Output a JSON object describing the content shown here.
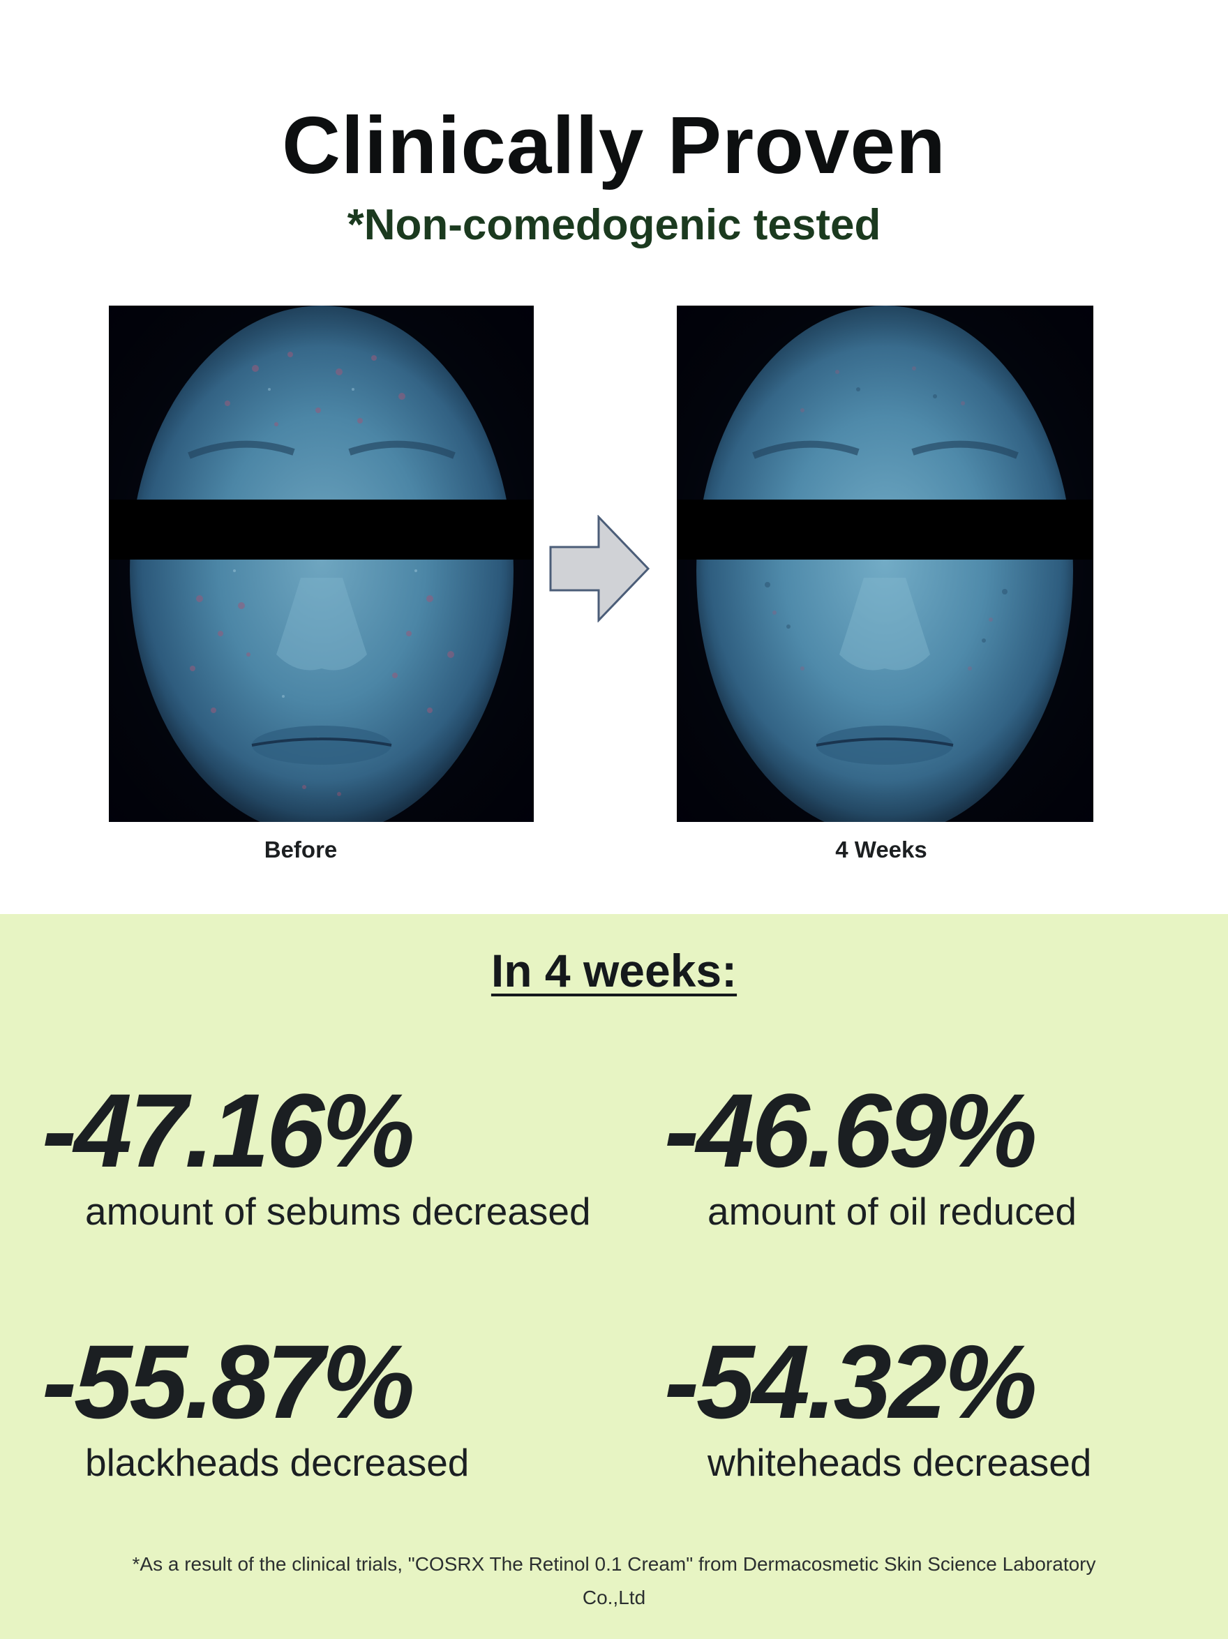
{
  "header": {
    "title": "Clinically Proven",
    "subtitle": "*Non-comedogenic tested"
  },
  "comparison": {
    "before_label": "Before",
    "after_label": "4 Weeks"
  },
  "results": {
    "heading": "In 4 weeks:",
    "stats": [
      {
        "value": "-47.16%",
        "label": "amount of sebums decreased"
      },
      {
        "value": "-46.69%",
        "label": "amount of oil reduced"
      },
      {
        "value": "-55.87%",
        "label": "blackheads decreased"
      },
      {
        "value": "-54.32%",
        "label": "whiteheads decreased"
      }
    ],
    "footnote": "*As a result of the clinical trials, \"COSRX The Retinol 0.1 Cream\" from Dermacosmetic Skin Science Laboratory Co.,Ltd"
  },
  "colors": {
    "results_background": "#e7f4c3",
    "subtitle_green": "#1b3a1f",
    "uv_face_blue": "#3f7fa3",
    "arrow_fill": "#d0d2d6",
    "arrow_stroke": "#4b5d78"
  }
}
